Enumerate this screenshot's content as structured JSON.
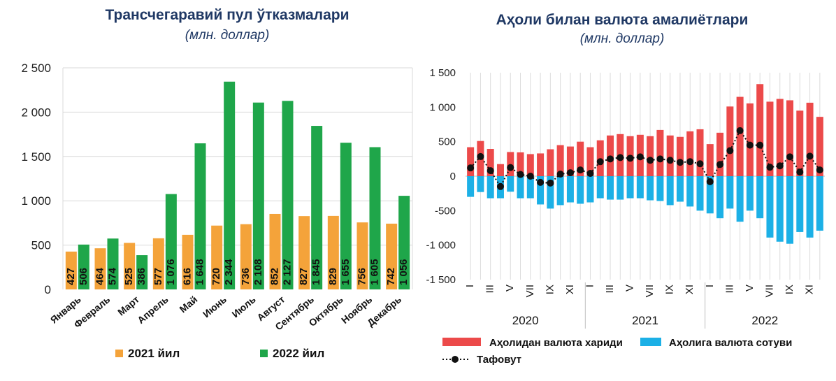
{
  "chart_data": [
    {
      "type": "bar",
      "title": "Трансчегаравий пул ўтказмалари",
      "subtitle": "(млн. доллар)",
      "categories": [
        "Январь",
        "Февраль",
        "Март",
        "Апрель",
        "Май",
        "Июнь",
        "Июль",
        "Август",
        "Сентябрь",
        "Октябрь",
        "Ноябрь",
        "Декабрь"
      ],
      "series": [
        {
          "name": "2021 йил",
          "color": "#f4a33a",
          "values": [
            427,
            464,
            525,
            577,
            616,
            720,
            736,
            852,
            827,
            829,
            756,
            742
          ],
          "labels": [
            "427",
            "464",
            "525",
            "577",
            "616",
            "720",
            "736",
            "852",
            "827",
            "829",
            "756",
            "742"
          ]
        },
        {
          "name": "2022 йил",
          "color": "#1fa64a",
          "values": [
            506,
            574,
            386,
            1076,
            1648,
            2344,
            2108,
            2127,
            1845,
            1655,
            1605,
            1056
          ],
          "labels": [
            "506",
            "574",
            "386",
            "1 076",
            "1 648",
            "2 344",
            "2 108",
            "2 127",
            "1 845",
            "1 655",
            "1 605",
            "1 056"
          ]
        }
      ],
      "ylim": [
        0,
        2500
      ],
      "yticks": [
        0,
        500,
        1000,
        1500,
        2000,
        2500
      ],
      "ytick_labels": [
        "0",
        "500",
        "1 000",
        "1 500",
        "2 000",
        "2 500"
      ],
      "grid": true,
      "legend": "bottom"
    },
    {
      "type": "bar",
      "title": "Аҳоли билан валюта амалиётлари",
      "subtitle": "(млн. доллар)",
      "ylim": [
        -1500,
        1500
      ],
      "yticks": [
        -1500,
        -1000,
        -500,
        0,
        500,
        1000,
        1500
      ],
      "ytick_labels": [
        "-1 500",
        "-1 000",
        "-500",
        "0",
        "500",
        "1 000",
        "1 500"
      ],
      "month_ticks": [
        "I",
        "",
        "III",
        "",
        "V",
        "",
        "VII",
        "",
        "IX",
        "",
        "XI",
        ""
      ],
      "years": [
        "2020",
        "2021",
        "2022"
      ],
      "grid": true,
      "legend": "bottom",
      "series": [
        {
          "name": "Аҳолидан валюта хариди",
          "color": "#ec4a4a",
          "values": [
            420,
            510,
            395,
            175,
            350,
            345,
            320,
            330,
            390,
            450,
            430,
            500,
            420,
            520,
            590,
            610,
            580,
            600,
            580,
            670,
            590,
            570,
            650,
            680,
            465,
            630,
            1010,
            1150,
            1055,
            1335,
            1080,
            1120,
            1100,
            950,
            1065,
            860
          ]
        },
        {
          "name": "Аҳолига валюта сотуви",
          "color": "#1cb0e6",
          "values": [
            -300,
            -230,
            -320,
            -320,
            -225,
            -320,
            -320,
            -410,
            -470,
            -420,
            -380,
            -400,
            -380,
            -320,
            -340,
            -340,
            -320,
            -320,
            -350,
            -360,
            -420,
            -370,
            -440,
            -500,
            -540,
            -610,
            -470,
            -660,
            -500,
            -610,
            -890,
            -950,
            -980,
            -810,
            -890,
            -790
          ]
        },
        {
          "name": "Тафовут",
          "color": "#111111",
          "values": [
            120,
            285,
            80,
            -150,
            125,
            25,
            0,
            -90,
            -100,
            30,
            50,
            90,
            40,
            210,
            250,
            270,
            260,
            280,
            230,
            250,
            230,
            200,
            210,
            180,
            -80,
            170,
            370,
            660,
            450,
            450,
            130,
            150,
            280,
            60,
            290,
            90
          ]
        }
      ]
    }
  ]
}
